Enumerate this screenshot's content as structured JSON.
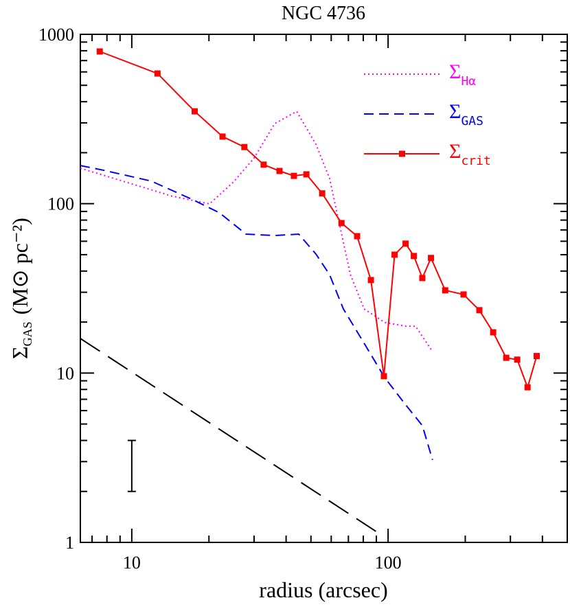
{
  "chart_data": {
    "type": "line",
    "title": "NGC 4736",
    "xlabel": "radius (arcsec)",
    "ylabel": "Σ",
    "ylabel_subscript": "GAS",
    "ylabel_units": "(M⊙ pc⁻²)",
    "xscale": "log",
    "yscale": "log",
    "xlim": [
      6.3,
      500
    ],
    "ylim": [
      1,
      1000
    ],
    "xticks": [
      10,
      100
    ],
    "yticks": [
      1,
      10,
      100,
      1000
    ],
    "xminor": [
      7,
      8,
      9,
      20,
      30,
      40,
      50,
      60,
      70,
      80,
      90,
      200,
      300,
      400,
      500
    ],
    "yminor": [
      2,
      3,
      4,
      5,
      6,
      7,
      8,
      9,
      20,
      30,
      40,
      50,
      60,
      70,
      80,
      90,
      200,
      300,
      400,
      500,
      600,
      700,
      800,
      900
    ],
    "legend": "upper right",
    "series": [
      {
        "name": "Σ",
        "name_subscript": "Hα",
        "color": "#ff00ff",
        "linestyle": "dotted",
        "marker": null,
        "x": [
          6.3,
          10.5,
          14.3,
          20.1,
          24.9,
          30.0,
          36.1,
          44.0,
          52.3,
          59.1,
          64.9,
          71.3,
          80.6,
          97.0,
          117,
          128,
          148
        ],
        "values": [
          162,
          128,
          111,
          99.7,
          134,
          186,
          297,
          351,
          224,
          141,
          73.3,
          38.1,
          23.9,
          19.9,
          18.9,
          18.9,
          13.6
        ]
      },
      {
        "name": "Σ",
        "name_subscript": "GAS",
        "color": "#0000ff",
        "linestyle": "dashed",
        "marker": null,
        "x": [
          6.3,
          7.7,
          11.9,
          17.2,
          22.0,
          27.9,
          36.1,
          44.8,
          52.3,
          59.1,
          66.9,
          80.6,
          97.0,
          117,
          136,
          149
        ],
        "values": [
          168,
          158,
          136,
          106,
          88.3,
          66.1,
          64.8,
          66.1,
          50.4,
          38.1,
          23.9,
          15.0,
          9.4,
          6.5,
          4.9,
          3.07
        ]
      },
      {
        "name": "Σ",
        "name_subscript": "crit",
        "color": "#ff0000",
        "linestyle": "solid",
        "marker": "square",
        "x": [
          7.5,
          12.6,
          17.6,
          22.6,
          27.5,
          32.7,
          37.7,
          42.9,
          48.0,
          55.3,
          65.8,
          75.7,
          85.7,
          96.3,
          106,
          117,
          126,
          136,
          147,
          167,
          197,
          227,
          257,
          289,
          319,
          350,
          380
        ],
        "values": [
          792,
          587,
          351,
          249,
          216,
          170,
          156,
          146,
          149,
          115,
          76.8,
          64.3,
          35.4,
          9.58,
          50,
          58.1,
          49.1,
          36.4,
          47.8,
          30.8,
          29.1,
          23.5,
          17.4,
          12.3,
          12.0,
          8.24,
          12.6
        ]
      }
    ],
    "reference_line": {
      "color": "#000000",
      "linestyle": "longdash",
      "x": [
        6.3,
        92.2
      ],
      "values": [
        16.0,
        1.13
      ]
    },
    "error_bar": {
      "x": 10,
      "low": 2,
      "high": 4,
      "color": "#000000"
    }
  }
}
